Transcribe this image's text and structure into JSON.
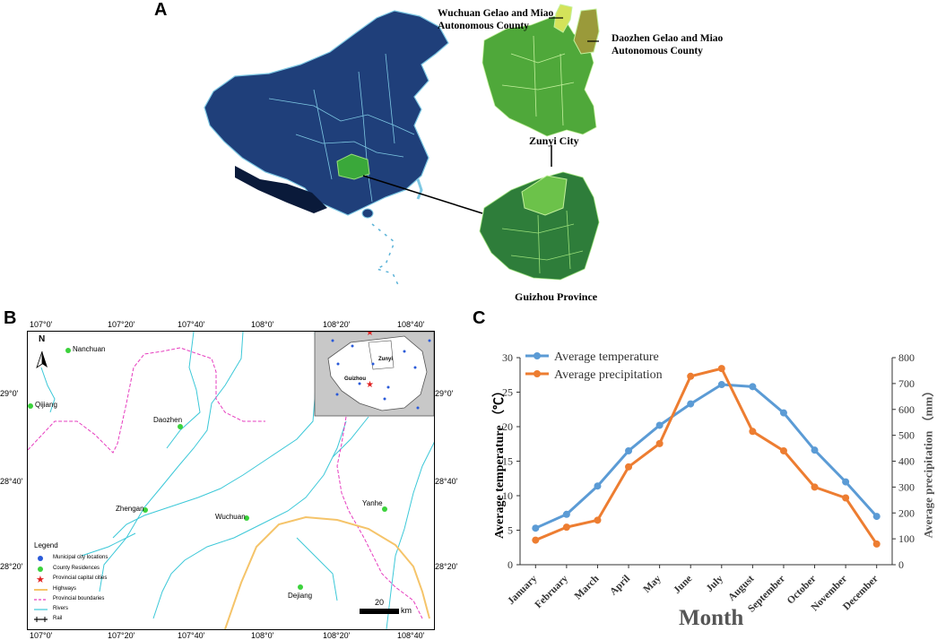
{
  "panels": {
    "a": "A",
    "b": "B",
    "c": "C"
  },
  "panel_a": {
    "wuchuan_label": "Wuchuan Gelao and Miao\nAutonomous County",
    "daozhen_label": "Daozhen Gelao and Miao\nAutonomous County",
    "zunyi_label": "Zunyi City",
    "guizhou_label": "Guizhou Province",
    "colors": {
      "china": "#1f3f7a",
      "guizhou_hl": "#3aa83a",
      "zunyi": "#4fa83a",
      "guizhou_prov": "#2e7d3a"
    }
  },
  "panel_b": {
    "top_ticks": [
      "107°0'",
      "107°20'",
      "107°40'",
      "108°0'",
      "108°20'",
      "108°40'"
    ],
    "bottom_ticks": [
      "107°0'",
      "107°20'",
      "107°40'",
      "108°0'",
      "108°20'",
      "108°40'"
    ],
    "left_ticks": [
      "29°0'",
      "28°40'",
      "28°20'"
    ],
    "right_ticks": [
      "29°0'",
      "28°40'",
      "28°20'"
    ],
    "north": "N",
    "places": [
      "Nanchuan",
      "Qijiang",
      "Daozhen",
      "Zhengan",
      "Wuchuan",
      "Yanhe",
      "Dejiang"
    ],
    "inset_labels": [
      "Zunyi",
      "Guizhou"
    ],
    "legend_title": "Legend",
    "legend_items": [
      "Municipal city locations",
      "County Residences",
      "Provincial capital cities",
      "Highways",
      "Provincial boundaries",
      "Rivers",
      "Rail"
    ],
    "scale_value": "20",
    "scale_unit": "km"
  },
  "chart_data": {
    "type": "line",
    "categories": [
      "January",
      "February",
      "March",
      "April",
      "May",
      "June",
      "July",
      "August",
      "September",
      "October",
      "November",
      "December"
    ],
    "series": [
      {
        "name": "Average temperature",
        "axis": "left",
        "color": "#5b9bd5",
        "values": [
          5.3,
          7.3,
          11.4,
          16.5,
          20.2,
          23.3,
          26.1,
          25.8,
          22.0,
          16.6,
          12.0,
          7.0
        ]
      },
      {
        "name": "Average precipitation",
        "axis": "right",
        "color": "#ed7d31",
        "values": [
          95,
          145,
          172,
          378,
          468,
          728,
          758,
          515,
          440,
          300,
          258,
          80
        ]
      }
    ],
    "xlabel": "Month",
    "ylabel": "Average temperature （℃）",
    "ylabel_right": "Average precipitation （mm）",
    "ylim": [
      0,
      30
    ],
    "ylim_right": [
      0,
      800
    ],
    "yticks": [
      "0",
      "5",
      "10",
      "15",
      "20",
      "25",
      "30"
    ],
    "yticks_right": [
      "0",
      "100",
      "200",
      "300",
      "400",
      "500",
      "600",
      "700",
      "800"
    ],
    "legend_position": "top-left"
  }
}
